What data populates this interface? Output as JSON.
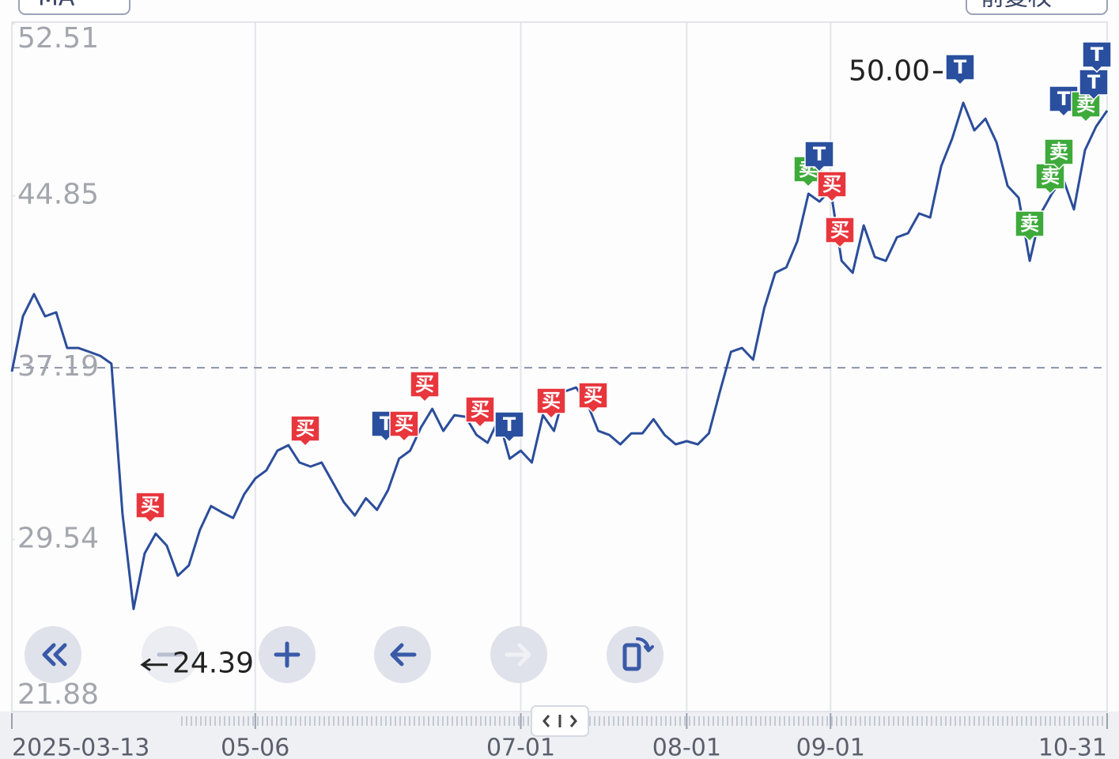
{
  "header": {
    "indicator": "MA",
    "adjust": "前复权"
  },
  "chart_data": {
    "type": "line",
    "color": "#2b4d9a",
    "categories": [
      "2025-03-13",
      null,
      null,
      null,
      null,
      null,
      null,
      null,
      null,
      null,
      null,
      null,
      null,
      null,
      null,
      null,
      null,
      null,
      null,
      null,
      null,
      null,
      "05-06",
      null,
      null,
      null,
      null,
      null,
      null,
      null,
      null,
      null,
      null,
      null,
      null,
      null,
      null,
      null,
      null,
      null,
      null,
      null,
      null,
      null,
      null,
      null,
      "07-01",
      null,
      null,
      null,
      null,
      null,
      null,
      null,
      null,
      null,
      null,
      null,
      null,
      null,
      null,
      "08-01",
      null,
      null,
      null,
      null,
      null,
      null,
      null,
      null,
      null,
      null,
      null,
      null,
      "09-01",
      null,
      null,
      null,
      null,
      null,
      null,
      null,
      null,
      null,
      null,
      null,
      null,
      null,
      null,
      null,
      null,
      null,
      null,
      null,
      null,
      null,
      null,
      null,
      null,
      "10-31"
    ],
    "values": [
      37.02,
      39.48,
      40.47,
      39.48,
      39.66,
      38.07,
      38.07,
      37.9,
      37.72,
      37.37,
      30.68,
      26.45,
      28.92,
      29.8,
      29.27,
      27.93,
      28.39,
      29.97,
      31.03,
      30.75,
      30.5,
      31.56,
      32.26,
      32.62,
      33.5,
      33.74,
      32.97,
      32.79,
      32.97,
      32.09,
      31.21,
      30.61,
      31.38,
      30.86,
      31.74,
      33.14,
      33.5,
      34.55,
      35.36,
      34.38,
      35.08,
      35.01,
      34.2,
      33.85,
      34.9,
      33.14,
      33.5,
      32.97,
      35.08,
      34.38,
      36.14,
      36.31,
      35.61,
      34.38,
      34.2,
      33.78,
      34.27,
      34.27,
      34.9,
      34.2,
      33.78,
      33.92,
      33.78,
      34.27,
      36.14,
      37.9,
      38.07,
      37.55,
      39.83,
      41.42,
      41.66,
      42.83,
      44.94,
      44.59,
      45.12,
      41.95,
      41.42,
      43.53,
      42.12,
      41.95,
      43.0,
      43.18,
      44.06,
      43.88,
      46.17,
      47.4,
      48.99,
      47.76,
      48.28,
      47.23,
      45.29,
      44.76,
      41.95,
      44.06,
      44.94,
      45.64,
      44.24,
      46.88,
      47.93,
      48.64
    ],
    "ylim": [
      21.88,
      52.51
    ],
    "yticks": [
      21.88,
      29.54,
      37.19,
      44.85,
      52.51
    ],
    "reference_line": 37.19,
    "annotations": [
      {
        "value": 50.0,
        "label": "50.00"
      },
      {
        "value": 24.39,
        "label": "24.39"
      }
    ],
    "marker_labels": {
      "buy": "买",
      "sell": "卖",
      "t": "T"
    }
  }
}
